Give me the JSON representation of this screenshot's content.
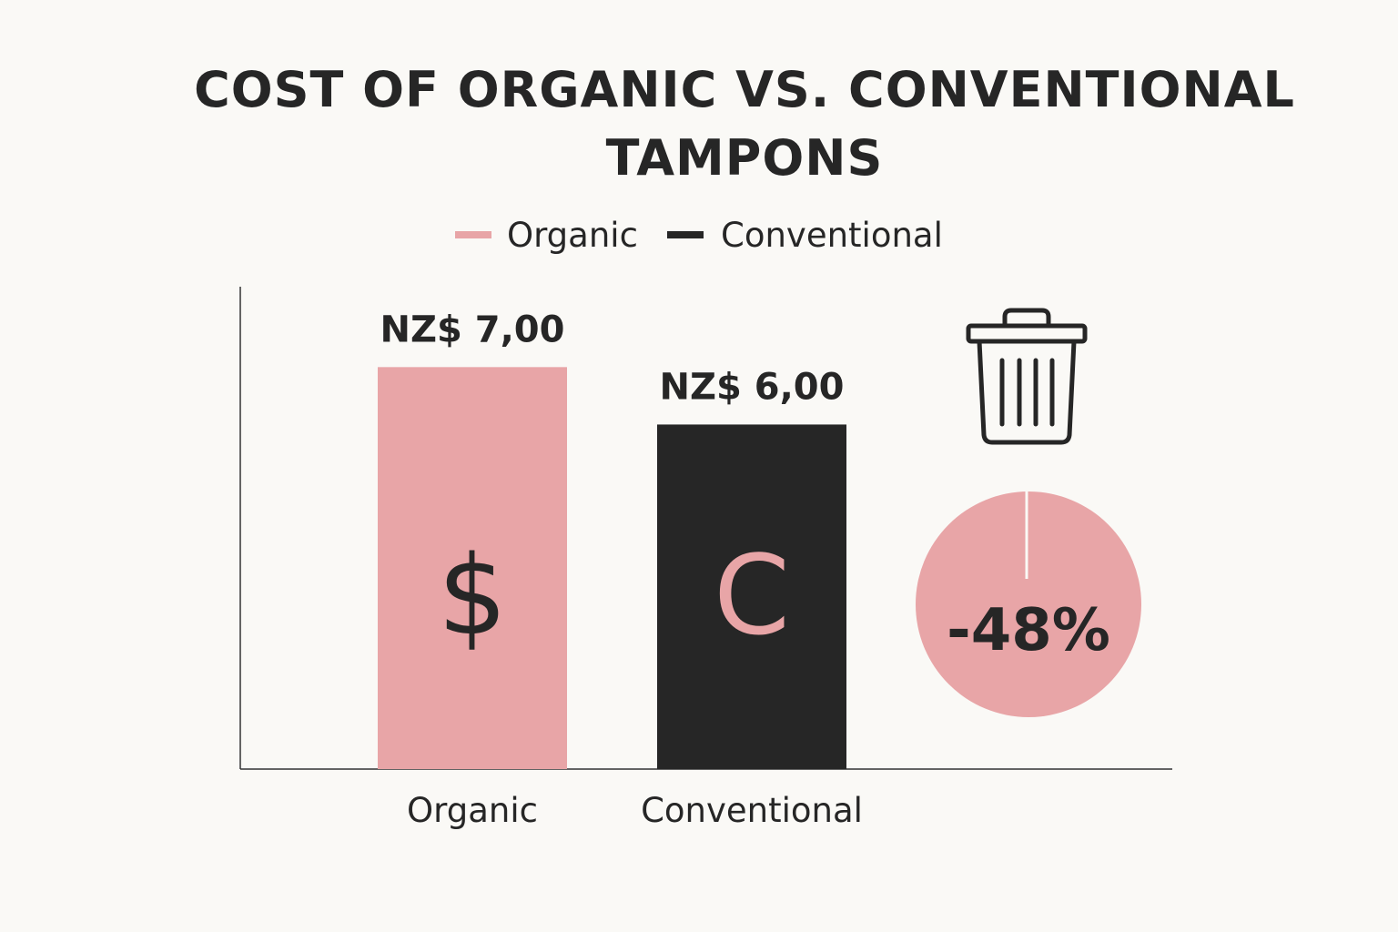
{
  "chart_data": {
    "type": "bar",
    "title_lines": [
      "COST OF ORGANIC VS. CONVENTIONAL",
      "TAMPONS"
    ],
    "legend": [
      {
        "name": "Organic",
        "color": "#e8a5a7"
      },
      {
        "name": "Conventional",
        "color": "#262626"
      }
    ],
    "categories": [
      "Organic",
      "Conventional"
    ],
    "values": [
      7.0,
      6.0
    ],
    "value_labels": [
      "NZ$ 7,00",
      "NZ$ 6,00"
    ],
    "bar_colors": [
      "#e8a5a7",
      "#262626"
    ],
    "bar_symbols": [
      {
        "text": "$",
        "color": "#262626"
      },
      {
        "text": "C",
        "color": "#e8a5a7"
      }
    ],
    "ylim": [
      0,
      8.4
    ],
    "xlabel": "",
    "ylabel": "",
    "legend_position": "top-center",
    "grid": false,
    "annotation": {
      "icon": "trash-can-icon",
      "pie_label": "-48%",
      "pie_color": "#e8a5a7"
    }
  }
}
